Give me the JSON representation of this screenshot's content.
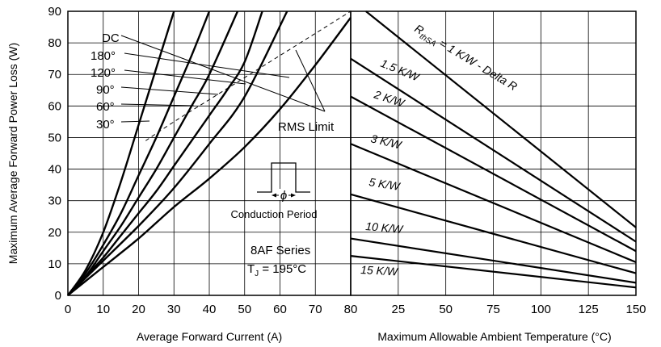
{
  "chart_data": [
    {
      "type": "line",
      "xlabel": "Average Forward Current (A)",
      "ylabel": "Maximum Average Forward Power Loss (W)",
      "xlim": [
        0,
        80
      ],
      "ylim": [
        0,
        90
      ],
      "x_ticks": [
        "0",
        "10",
        "20",
        "30",
        "40",
        "50",
        "60",
        "70",
        "80"
      ],
      "y_ticks": [
        "0",
        "10",
        "20",
        "30",
        "40",
        "50",
        "60",
        "70",
        "80",
        "90"
      ],
      "grid": true,
      "series": [
        {
          "name": "30°",
          "x": [
            0,
            5,
            10,
            15,
            20,
            25,
            30
          ],
          "y": [
            0,
            8,
            20,
            36,
            54,
            72,
            90
          ]
        },
        {
          "name": "60°",
          "x": [
            0,
            5,
            10,
            15,
            20,
            25,
            30,
            35,
            40
          ],
          "y": [
            0,
            7,
            16,
            26,
            38,
            50,
            63,
            76,
            90
          ]
        },
        {
          "name": "90°",
          "x": [
            0,
            5,
            10,
            15,
            20,
            25,
            30,
            35,
            40,
            48
          ],
          "y": [
            0,
            6,
            14,
            22,
            31,
            40,
            50,
            60,
            70,
            90
          ]
        },
        {
          "name": "120°",
          "x": [
            0,
            5,
            10,
            15,
            20,
            25,
            30,
            35,
            40,
            45,
            50,
            55
          ],
          "y": [
            0,
            6,
            12,
            19,
            26,
            33,
            41,
            49,
            57,
            65,
            74,
            90
          ]
        },
        {
          "name": "180°",
          "x": [
            0,
            10,
            20,
            30,
            40,
            50,
            62
          ],
          "y": [
            0,
            11,
            22,
            34,
            48,
            63,
            90
          ]
        },
        {
          "name": "DC",
          "x": [
            0,
            10,
            20,
            30,
            40,
            50,
            60,
            70,
            80
          ],
          "y": [
            0,
            9,
            18,
            28,
            37,
            47,
            59,
            73,
            88
          ]
        }
      ],
      "rms_limit": {
        "label": "RMS Limit",
        "x": [
          22,
          30,
          40,
          50,
          60,
          70,
          80
        ],
        "y": [
          49,
          55,
          62,
          69,
          76,
          83,
          90
        ]
      },
      "curve_labels": [
        "DC",
        "180°",
        "120°",
        "90°",
        "60°",
        "30°"
      ],
      "annotations": {
        "conduction": "Conduction Period",
        "phi": "ϕ",
        "series_name": "8AF Series",
        "tj_prefix": "T",
        "tj_sub": "J",
        "tj_value": " = 195°C"
      }
    },
    {
      "type": "line",
      "xlabel": "Maximum Allowable Ambient Temperature (°C)",
      "xlim": [
        0,
        150
      ],
      "ylim": [
        0,
        90
      ],
      "x_ticks": [
        "25",
        "50",
        "75",
        "100",
        "125",
        "150"
      ],
      "grid": true,
      "series": [
        {
          "name": "1 K/W",
          "x": [
            8,
            150
          ],
          "y": [
            90,
            21.5
          ]
        },
        {
          "name": "1.5 K/W",
          "x": [
            0,
            150
          ],
          "y": [
            75,
            17
          ]
        },
        {
          "name": "2 K/W",
          "x": [
            0,
            150
          ],
          "y": [
            63,
            14
          ]
        },
        {
          "name": "3 K/W",
          "x": [
            0,
            150
          ],
          "y": [
            48,
            10.5
          ]
        },
        {
          "name": "5 K/W",
          "x": [
            0,
            150
          ],
          "y": [
            32,
            7
          ]
        },
        {
          "name": "10 K/W",
          "x": [
            0,
            150
          ],
          "y": [
            18,
            4
          ]
        },
        {
          "name": "15 K/W",
          "x": [
            0,
            150
          ],
          "y": [
            12.5,
            2.5
          ]
        }
      ],
      "line_labels": {
        "rthsa_r": "R",
        "rthsa_sub": "thSA",
        "rthsa_rest": " = 1 K/W - Delta R",
        "k15": "1.5 K/W",
        "k2": "2 K/W",
        "k3": "3 K/W",
        "k5": "5 K/W",
        "k10": "10 K/W",
        "k15w": "15 K/W"
      }
    }
  ]
}
